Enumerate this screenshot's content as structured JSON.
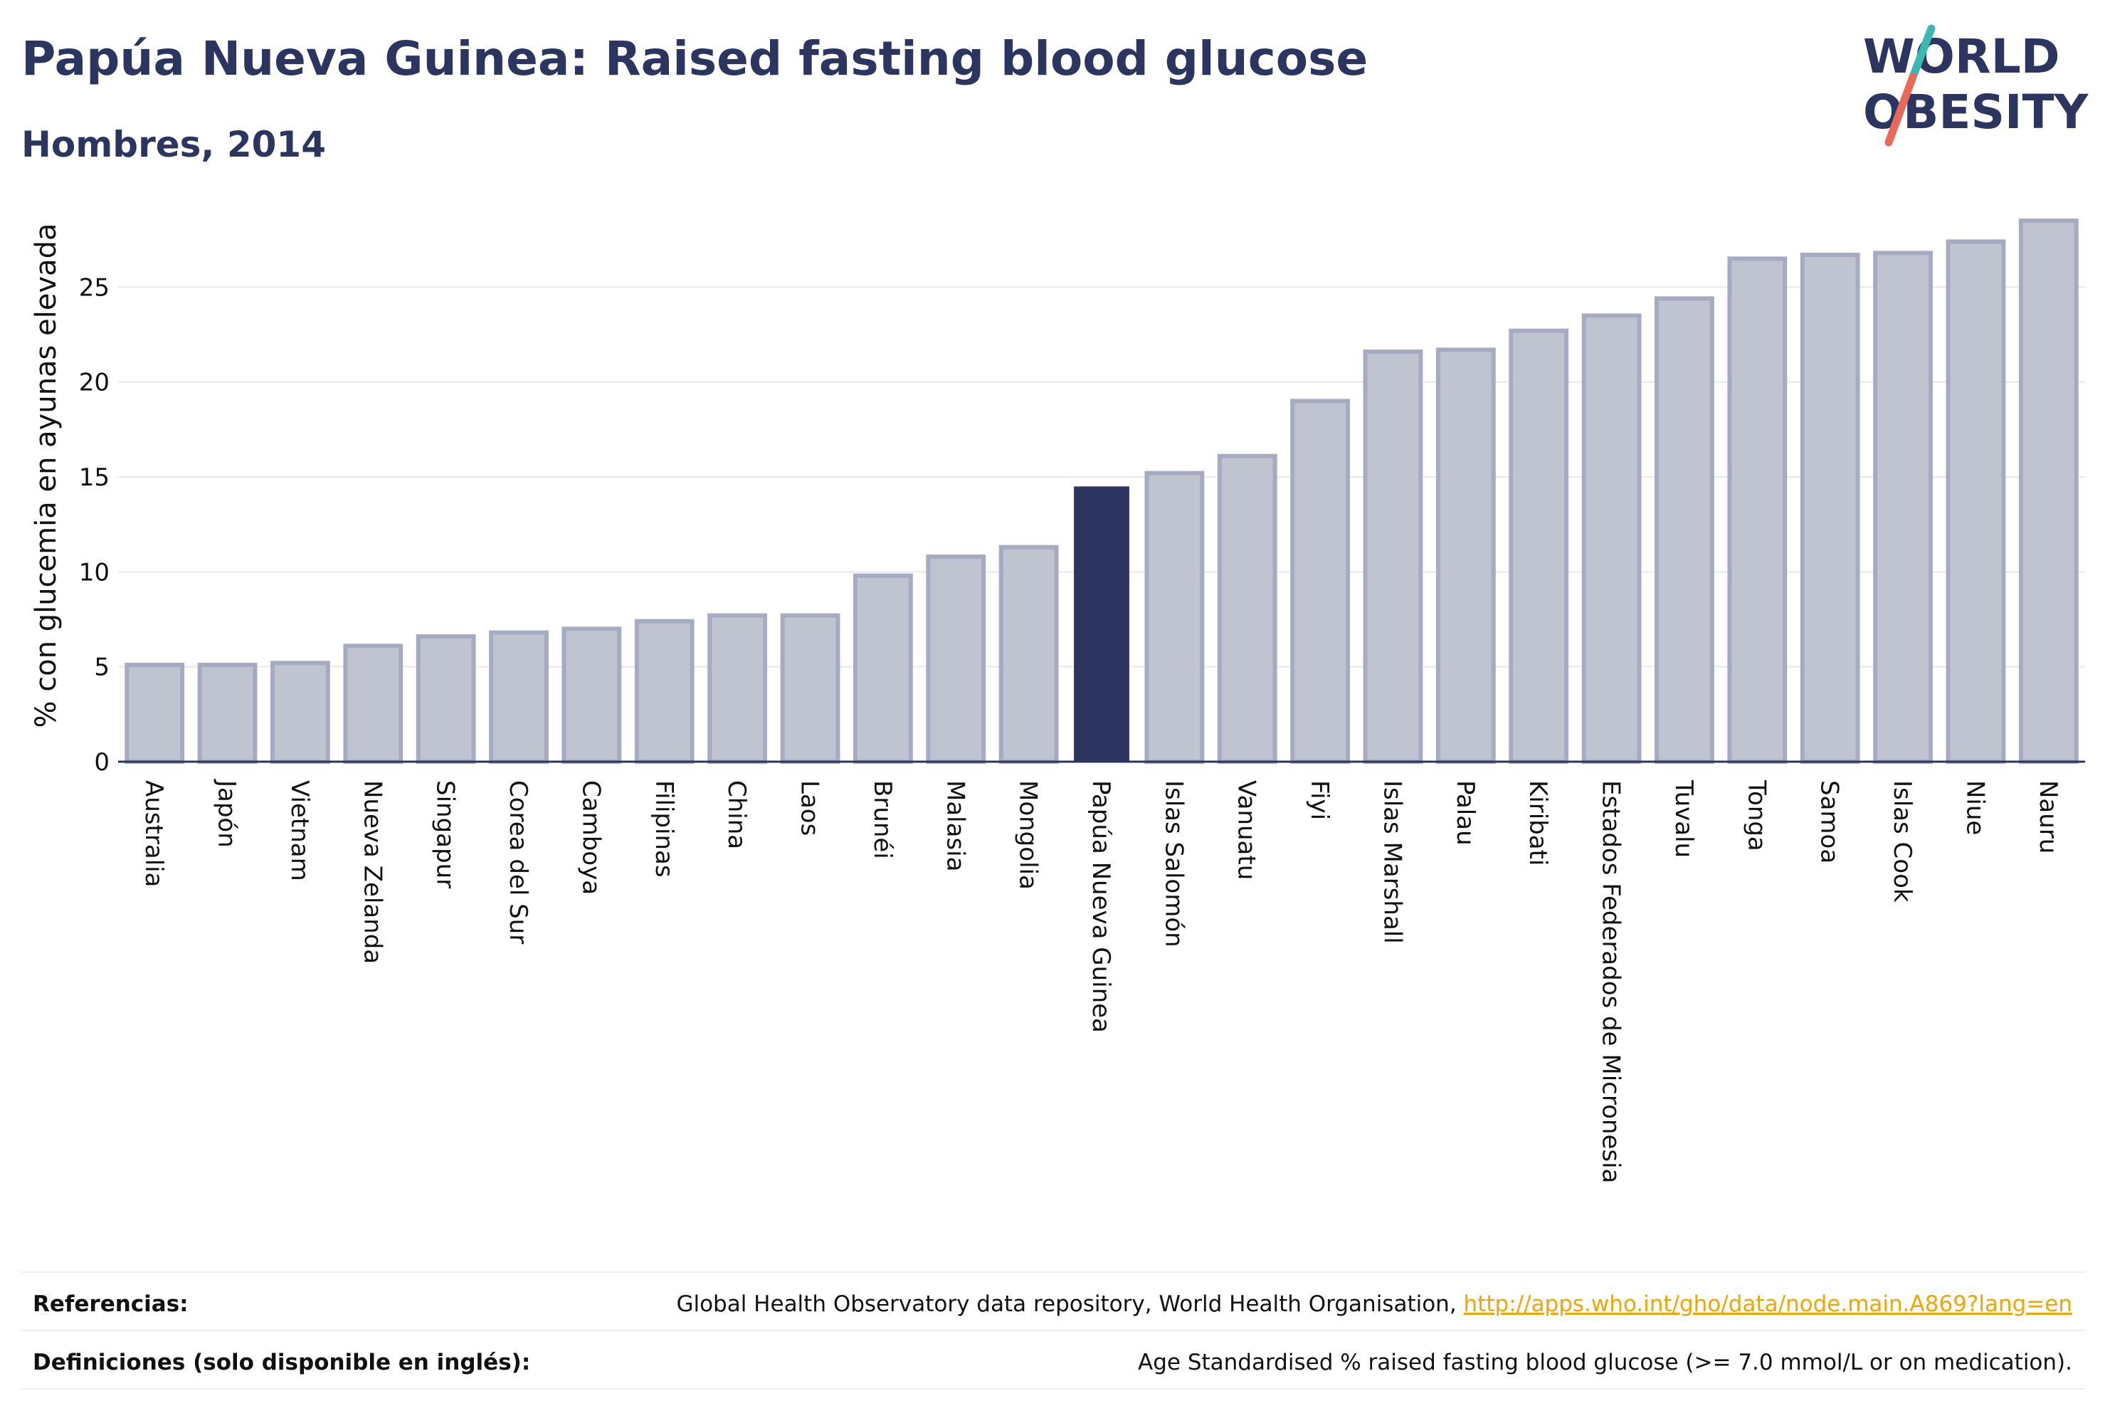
{
  "header": {
    "title": "Papúa Nueva Guinea: Raised fasting blood glucose",
    "subtitle": "Hombres, 2014"
  },
  "logo": {
    "line1": "WORLD",
    "line2": "OBESITY"
  },
  "colors": {
    "bar": "#c0c3d0",
    "bar_stroke": "#a6abc2",
    "highlight": "#2b3560",
    "accent_teal": "#3cb8b2",
    "accent_red": "#e8685a"
  },
  "chart_data": {
    "type": "bar",
    "ylabel": "% con glucemia en ayunas elevada",
    "ylim": [
      0,
      28.5
    ],
    "yticks": [
      0,
      5,
      10,
      15,
      20,
      25
    ],
    "grid": true,
    "highlight": "Papúa Nueva Guinea",
    "categories": [
      "Australia",
      "Japón",
      "Vietnam",
      "Nueva Zelanda",
      "Singapur",
      "Corea del Sur",
      "Camboya",
      "Filipinas",
      "China",
      "Laos",
      "Brunéi",
      "Malasia",
      "Mongolia",
      "Papúa Nueva Guinea",
      "Islas Salomón",
      "Vanuatu",
      "Fiyi",
      "Islas Marshall",
      "Palau",
      "Kiribati",
      "Estados Federados de Micronesia",
      "Tuvalu",
      "Tonga",
      "Samoa",
      "Islas Cook",
      "Niue",
      "Nauru"
    ],
    "values": [
      5.1,
      5.1,
      5.2,
      6.1,
      6.6,
      6.8,
      7.0,
      7.4,
      7.7,
      7.7,
      9.8,
      10.8,
      11.3,
      14.5,
      15.2,
      16.1,
      19.0,
      21.6,
      21.7,
      22.7,
      23.5,
      24.4,
      26.5,
      26.7,
      26.8,
      27.4,
      28.5
    ]
  },
  "footer": {
    "references_label": "Referencias:",
    "references_text": "Global Health Observatory data repository, World Health Organisation, ",
    "references_link": "http://apps.who.int/gho/data/node.main.A869?lang=en",
    "definitions_label": "Definiciones (solo disponible en inglés):",
    "definitions_text": "Age Standardised % raised fasting blood glucose (>= 7.0 mmol/L or on medication)."
  }
}
